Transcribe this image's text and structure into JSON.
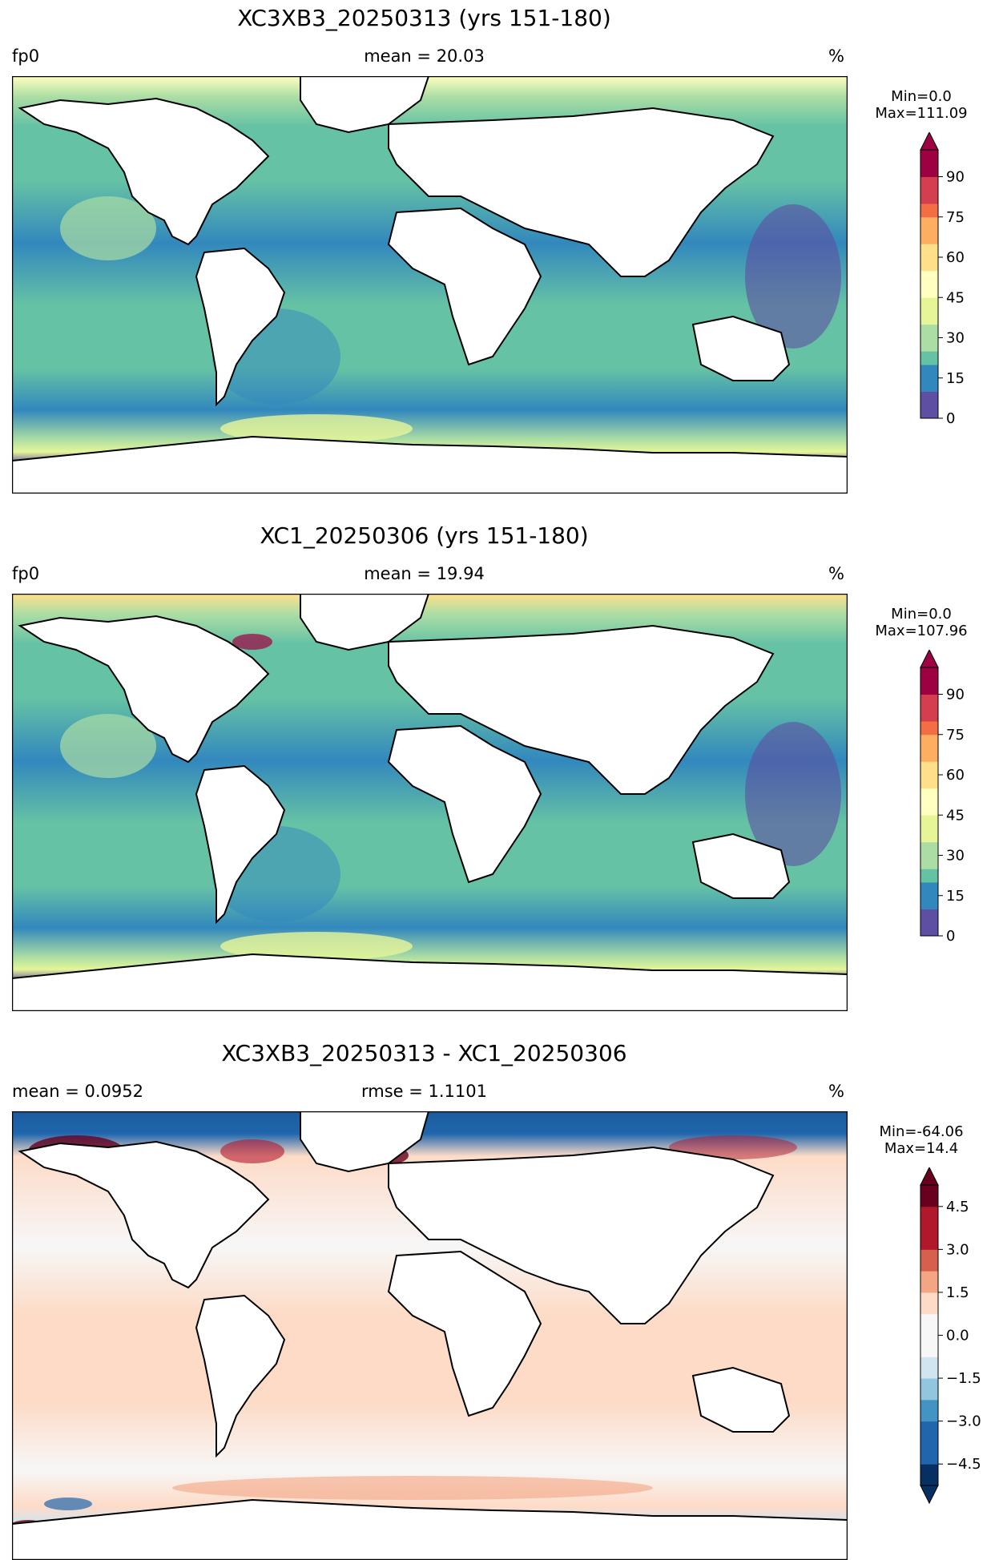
{
  "panels": [
    {
      "id": "top",
      "title": "XC3XB3_20250313 (yrs 151-180)",
      "left_label": "fp0",
      "center_label": "mean = 20.03",
      "units": "%",
      "min_label": "Min=0.0",
      "max_label": "Max=111.09",
      "colormap": "Spectral_r",
      "colorbar": {
        "range": [
          0,
          100
        ],
        "ticks": [
          "0",
          "15",
          "30",
          "45",
          "60",
          "75",
          "90"
        ],
        "tick_values": [
          0,
          15,
          30,
          45,
          60,
          75,
          90
        ],
        "extend_max": true
      }
    },
    {
      "id": "middle",
      "title": "XC1_20250306 (yrs 151-180)",
      "left_label": "fp0",
      "center_label": "mean = 19.94",
      "units": "%",
      "min_label": "Min=0.0",
      "max_label": "Max=107.96",
      "colormap": "Spectral_r",
      "colorbar": {
        "range": [
          0,
          100
        ],
        "ticks": [
          "0",
          "15",
          "30",
          "45",
          "60",
          "75",
          "90"
        ],
        "tick_values": [
          0,
          15,
          30,
          45,
          60,
          75,
          90
        ],
        "extend_max": true
      }
    },
    {
      "id": "bottom",
      "title": "XC3XB3_20250313 - XC1_20250306",
      "left_label": "mean = 0.0952",
      "center_label": "rmse = 1.1101",
      "units": "%",
      "min_label": "Min=-64.06",
      "max_label": "Max=14.4",
      "colormap": "RdBu_r",
      "colorbar": {
        "range": [
          -5.25,
          5.25
        ],
        "ticks": [
          "−4.5",
          "−3.0",
          "−1.5",
          "0.0",
          "1.5",
          "3.0",
          "4.5"
        ],
        "tick_values": [
          -4.5,
          -3.0,
          -1.5,
          0.0,
          1.5,
          3.0,
          4.5
        ],
        "extend_min": true,
        "extend_max": true
      }
    }
  ],
  "colors": {
    "spectral": [
      "#5e4fa2",
      "#3288bd",
      "#66c2a5",
      "#abdda4",
      "#e6f598",
      "#ffffbf",
      "#fee08b",
      "#fdae61",
      "#f46d43",
      "#d53e4f",
      "#9e0142"
    ],
    "rdbu": [
      "#053061",
      "#2166ac",
      "#4393c3",
      "#92c5de",
      "#d1e5f0",
      "#f7f7f7",
      "#fddbc7",
      "#f4a582",
      "#d6604d",
      "#b2182b",
      "#67001f"
    ],
    "land": "#ffffff",
    "coast": "#000000"
  }
}
